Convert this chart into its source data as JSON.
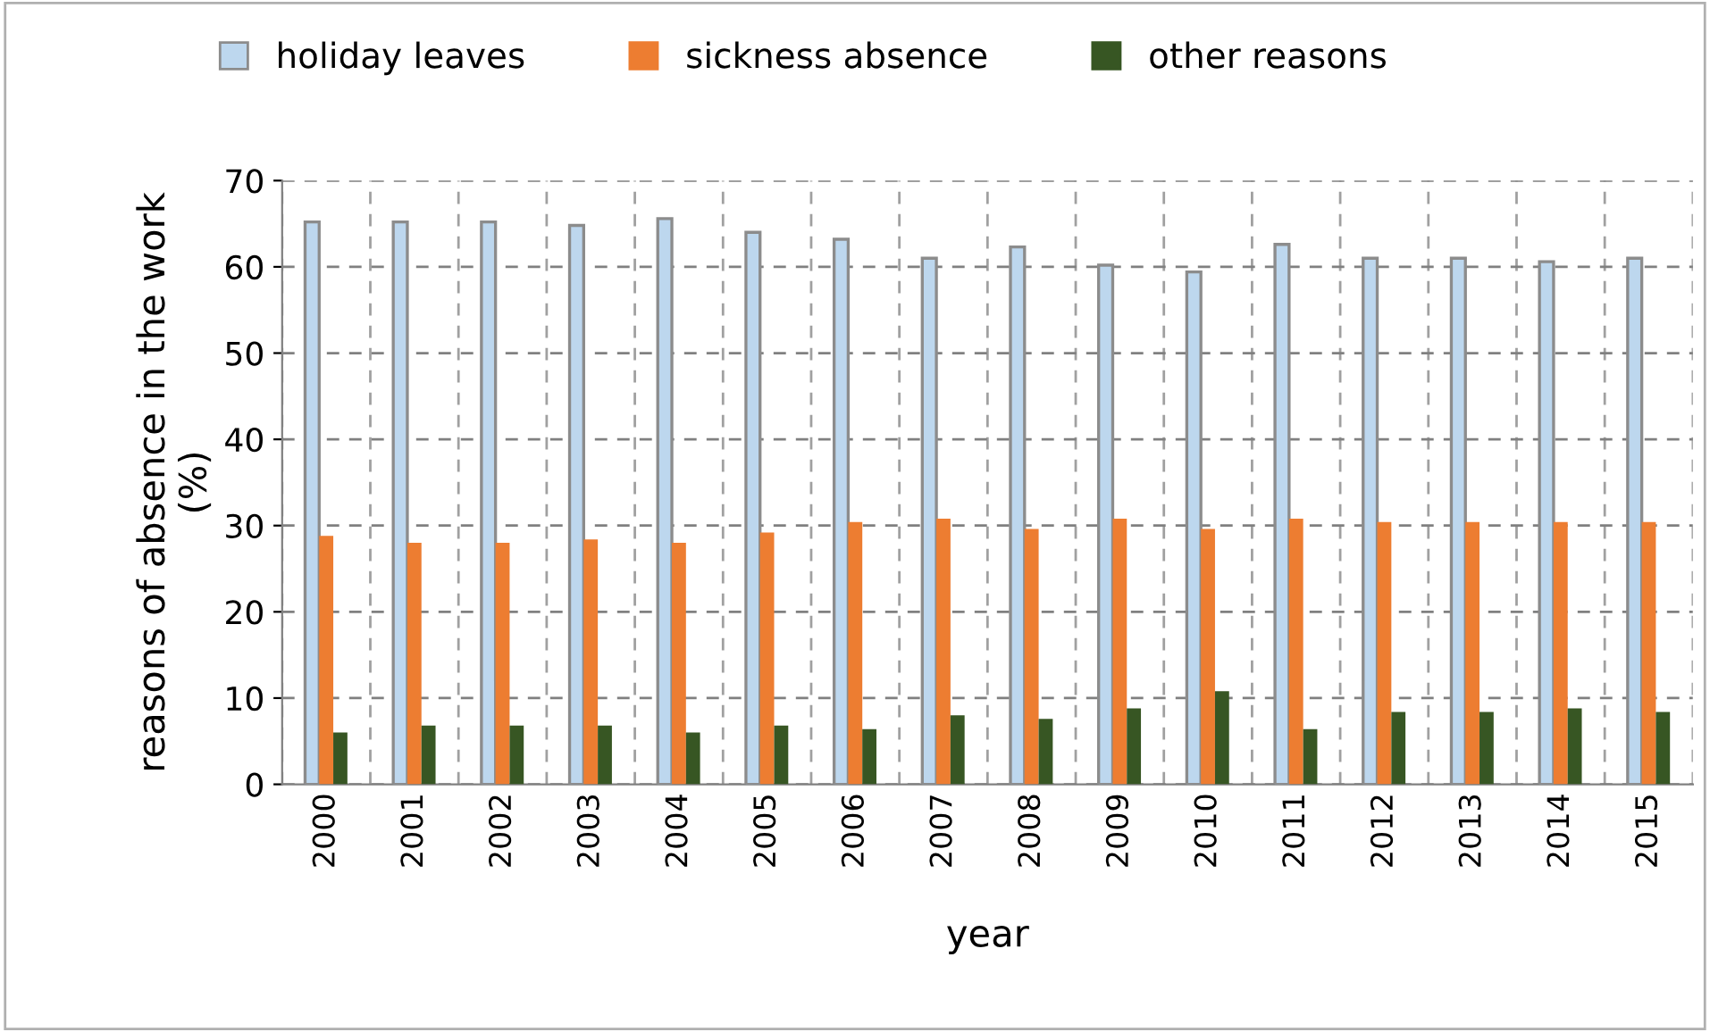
{
  "chart_data": {
    "type": "bar",
    "xlabel": "year",
    "ylabel": "reasons of absence in the work\n(%)",
    "categories": [
      "2000",
      "2001",
      "2002",
      "2003",
      "2004",
      "2005",
      "2006",
      "2007",
      "2008",
      "2009",
      "2010",
      "2011",
      "2012",
      "2013",
      "2014",
      "2015"
    ],
    "series": [
      {
        "name": "holiday leaves",
        "color": "#bdd7ee",
        "values": [
          65.2,
          65.2,
          65.2,
          64.8,
          65.6,
          64,
          63.2,
          61,
          62.3,
          60.2,
          59.4,
          62.6,
          61,
          61,
          60.6,
          61
        ]
      },
      {
        "name": "sickness absence",
        "color": "#ed7d31",
        "values": [
          28.8,
          28,
          28,
          28.4,
          28,
          29.2,
          30.4,
          30.8,
          29.6,
          30.8,
          29.6,
          30.8,
          30.4,
          30.4,
          30.4,
          30.4
        ]
      },
      {
        "name": "other reasons",
        "color": "#375623",
        "values": [
          6,
          6.8,
          6.8,
          6.8,
          6,
          6.8,
          6.4,
          8,
          7.6,
          8.8,
          10.8,
          6.4,
          8.4,
          8.4,
          8.8,
          8.4
        ]
      }
    ],
    "ylim": [
      0,
      70
    ],
    "yticks": [
      0,
      10,
      20,
      30,
      40,
      50,
      60,
      70
    ],
    "grid": true,
    "legend": "top"
  }
}
